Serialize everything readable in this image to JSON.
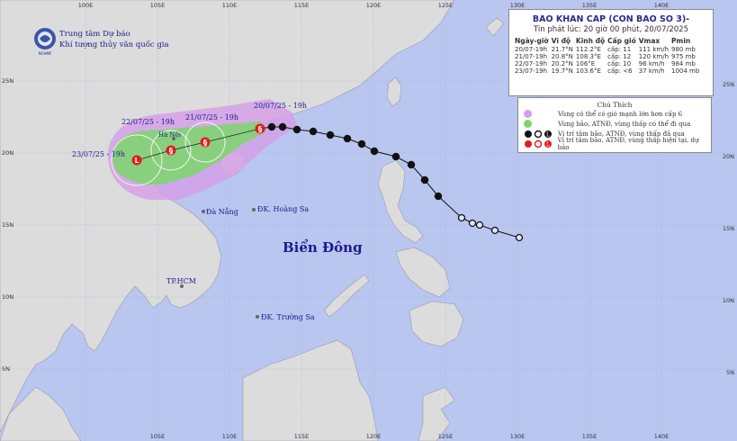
{
  "header": {
    "org_line1": "Trung tâm Dự báo",
    "org_line2": "Khí tượng thủy văn quốc gia",
    "logo_text": "NCHMF"
  },
  "info": {
    "title": "BAO KHAN CAP (CON BAO SO 3)-",
    "issued": "Tin phát lúc: 20 giờ 00 phút, 20/07/2025",
    "columns": [
      "Ngày-giờ",
      "Vĩ độ",
      "Kinh độ",
      "Cấp gió",
      "Vmax",
      "Pmin"
    ],
    "rows": [
      [
        "20/07-19h",
        "21.7°N",
        "112.2°E",
        "cấp: 11",
        "111 km/h",
        "980 mb"
      ],
      [
        "21/07-19h",
        "20.8°N",
        "108.3°E",
        "cấp: 12",
        "120 km/h",
        "975 mb"
      ],
      [
        "22/07-19h",
        "20.2°N",
        "106°E",
        "cấp: 10",
        "96 km/h",
        "984 mb"
      ],
      [
        "23/07-19h",
        "19.7°N",
        "103.6°E",
        "cấp: <6",
        "37 km/h",
        "1004 mb"
      ]
    ]
  },
  "legend": {
    "title": "Chú Thích",
    "items": [
      {
        "text": "Vùng có thể có gió mạnh lớn hơn cấp 6",
        "color": "#d69ee8"
      },
      {
        "text": "Vùng bão, ATNĐ, vùng thấp có thể đi qua",
        "color": "#7bd76b"
      },
      {
        "text": "Vị trí tâm bão, ATNĐ, vùng thấp đã qua",
        "color": "#111111"
      },
      {
        "text": "Vị trí tâm bão, ATNĐ, vùng thấp hiện tại, dự báo",
        "color": "#e21b1b"
      }
    ]
  },
  "map_labels": {
    "sea": "Biển Đông",
    "hanoi": "Hà Nội",
    "danang": "Đà Nẵng",
    "hcm": "TP.HCM",
    "hoangsa": "ĐK. Hoàng Sa",
    "truongsa": "ĐK. Trường Sa",
    "forecast": [
      "20/07/25 - 19h",
      "21/07/25 - 19h",
      "22/07/25 - 19h",
      "23/07/25 - 19h"
    ]
  },
  "axes": {
    "lon_top": [
      "100E",
      "105E",
      "110E",
      "115E",
      "120E",
      "125E",
      "130E",
      "135E",
      "140E"
    ],
    "lon_bottom": [
      "105E",
      "110E",
      "115E",
      "120E",
      "125E",
      "130E",
      "135E",
      "140E"
    ],
    "lat_left": [
      "25N",
      "20N",
      "15N",
      "10N",
      "5N"
    ],
    "lat_right": [
      "25N",
      "20N",
      "15N",
      "10N",
      "5N"
    ]
  },
  "colors": {
    "sea": "#b9c6ef",
    "land": "#dcdcdc",
    "wind_zone": "#d69ee8",
    "storm_zone": "#7bd76b",
    "past_track": "#111111",
    "forecast_track": "#e21b1b"
  }
}
